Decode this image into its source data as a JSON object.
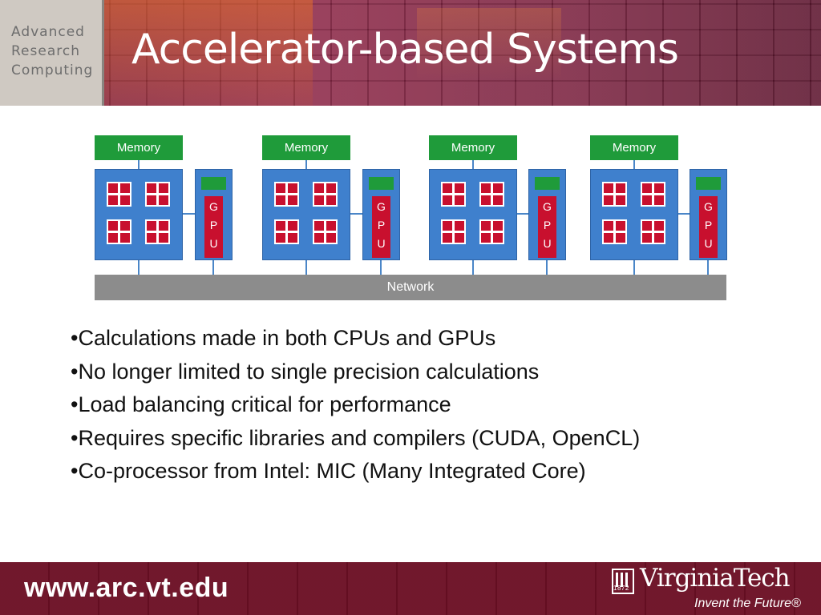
{
  "header": {
    "logo": {
      "line1": "Advanced",
      "line2": "Research",
      "line3": "Computing"
    },
    "title": "Accelerator-based Systems"
  },
  "diagram": {
    "nodes": [
      {
        "memory_label": "Memory",
        "gpu_label": "G\nP\nU"
      },
      {
        "memory_label": "Memory",
        "gpu_label": "G\nP\nU"
      },
      {
        "memory_label": "Memory",
        "gpu_label": "G\nP\nU"
      },
      {
        "memory_label": "Memory",
        "gpu_label": "G\nP\nU"
      }
    ],
    "network_label": "Network",
    "colors": {
      "memory": "#1f9b3a",
      "cpu": "#3f80cd",
      "core": "#c8102e",
      "network": "#8c8c8c"
    }
  },
  "bullets": [
    "Calculations made in both CPUs and GPUs",
    "No longer limited to single precision calculations",
    "Load balancing critical for performance",
    "Requires specific libraries and compilers (CUDA, OpenCL)",
    "Co-processor from Intel: MIC (Many Integrated Core)"
  ],
  "footer": {
    "url": "www.arc.vt.edu",
    "brand": "VirginiaTech",
    "brand_year": "1872",
    "tagline": "Invent the Future®"
  }
}
